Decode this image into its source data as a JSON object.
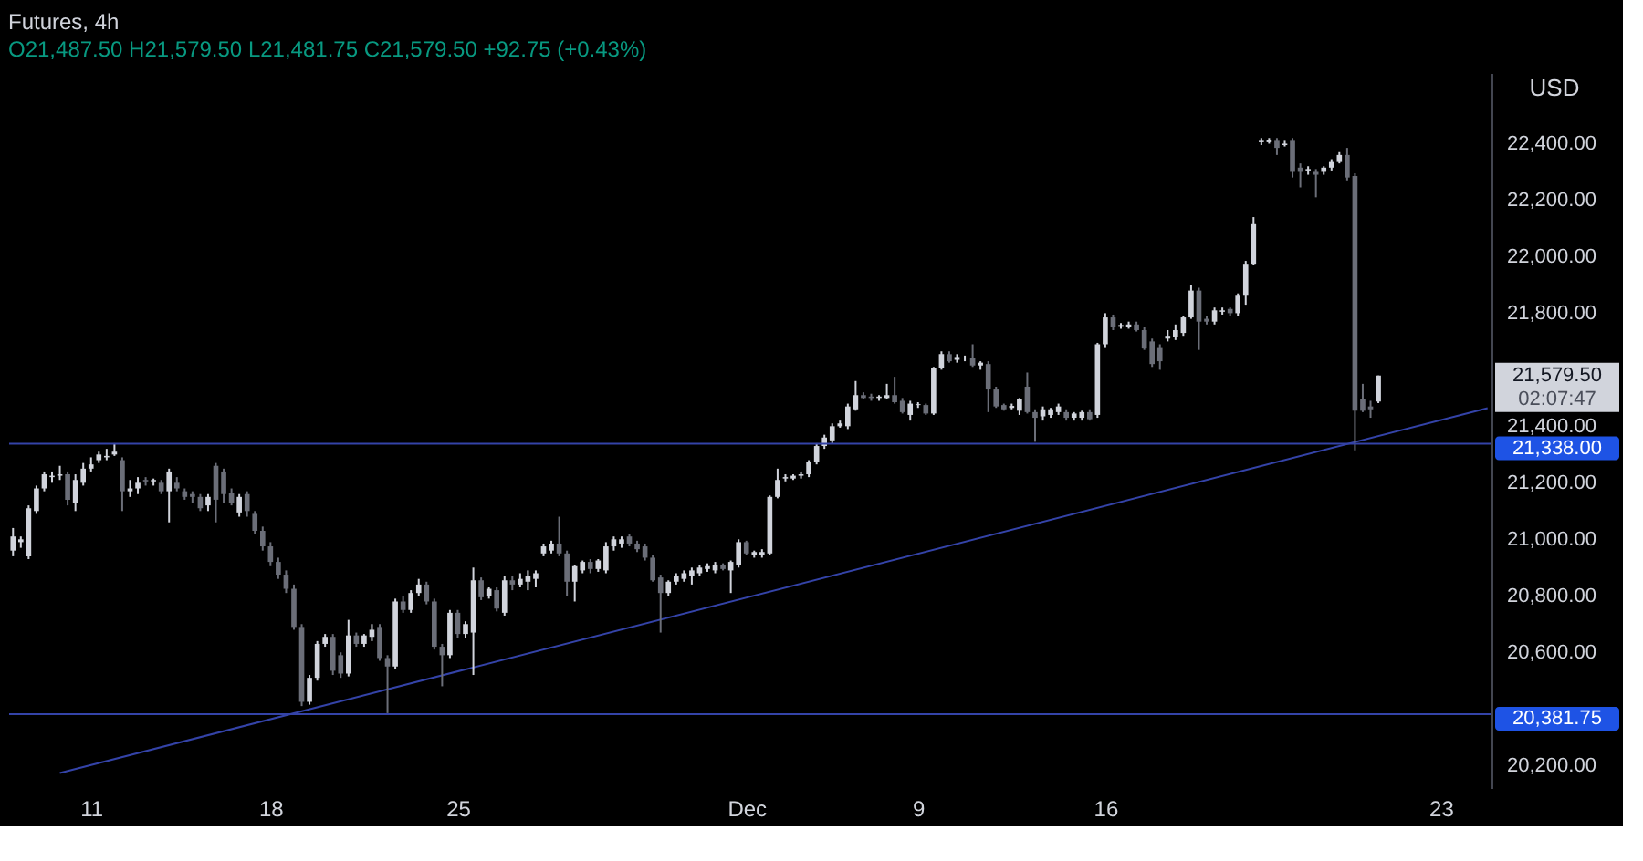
{
  "chart_data": {
    "type": "candlestick",
    "title": "Futures, 4h",
    "subtitle": "O21,487.50 H21,579.50 L21,481.75 C21,579.50 +92.75 (+0.43%)",
    "ylabel": "USD",
    "categories": [
      null,
      null,
      null,
      null,
      null,
      null,
      null,
      null,
      null,
      null,
      "11",
      null,
      null,
      null,
      null,
      null,
      null,
      null,
      null,
      null,
      null,
      null,
      null,
      null,
      null,
      null,
      null,
      null,
      null,
      null,
      null,
      null,
      null,
      "18",
      null,
      null,
      null,
      null,
      null,
      null,
      null,
      null,
      null,
      null,
      null,
      null,
      null,
      null,
      null,
      null,
      null,
      null,
      null,
      null,
      null,
      null,
      null,
      "25",
      null,
      null,
      null,
      null,
      null,
      null,
      null,
      null,
      null,
      null,
      null,
      null,
      null,
      null,
      null,
      null,
      null,
      null,
      null,
      null,
      null,
      null,
      null,
      null,
      null,
      null,
      null,
      null,
      null,
      null,
      null,
      null,
      null,
      null,
      null,
      null,
      "Dec",
      null,
      null,
      null,
      null,
      null,
      null,
      null,
      null,
      null,
      null,
      null,
      null,
      null,
      null,
      null,
      null,
      null,
      null,
      null,
      null,
      null,
      "9",
      null,
      null,
      null,
      null,
      null,
      null,
      null,
      null,
      null,
      null,
      null,
      null,
      null,
      null,
      null,
      null,
      null,
      null,
      null,
      null,
      null,
      null,
      null,
      "16",
      null,
      null,
      null,
      null,
      null,
      null,
      null,
      null,
      null,
      null,
      null,
      null,
      null,
      null,
      null,
      null,
      null,
      null,
      null,
      null,
      null,
      null,
      null,
      null,
      null,
      null,
      null,
      null,
      null,
      null,
      null,
      null,
      null,
      null,
      null,
      null,
      null,
      null,
      null,
      null,
      null,
      null,
      "23",
      null,
      null,
      null,
      null,
      null,
      null
    ],
    "ohlc": [
      [
        20960,
        21040,
        20940,
        21010
      ],
      [
        20990,
        21010,
        20970,
        21000
      ],
      [
        20940,
        21120,
        20930,
        21110
      ],
      [
        21100,
        21190,
        21090,
        21180
      ],
      [
        21180,
        21240,
        21170,
        21230
      ],
      [
        21220,
        21240,
        21200,
        21225
      ],
      [
        21225,
        21260,
        21210,
        21230
      ],
      [
        21230,
        21240,
        21120,
        21140
      ],
      [
        21130,
        21230,
        21100,
        21210
      ],
      [
        21200,
        21270,
        21190,
        21250
      ],
      [
        21250,
        21290,
        21240,
        21265
      ],
      [
        21280,
        21310,
        21270,
        21300
      ],
      [
        21290,
        21320,
        21280,
        21295
      ],
      [
        21300,
        21340,
        21295,
        21310
      ],
      [
        21280,
        21290,
        21100,
        21170
      ],
      [
        21170,
        21210,
        21150,
        21180
      ],
      [
        21180,
        21220,
        21160,
        21200
      ],
      [
        21210,
        21220,
        21190,
        21205
      ],
      [
        21205,
        21215,
        21190,
        21210
      ],
      [
        21200,
        21210,
        21160,
        21170
      ],
      [
        21170,
        21250,
        21060,
        21240
      ],
      [
        21200,
        21220,
        21170,
        21180
      ],
      [
        21170,
        21180,
        21140,
        21150
      ],
      [
        21160,
        21170,
        21130,
        21150
      ],
      [
        21150,
        21160,
        21100,
        21110
      ],
      [
        21120,
        21160,
        21100,
        21150
      ],
      [
        21260,
        21270,
        21060,
        21140
      ],
      [
        21240,
        21250,
        21130,
        21160
      ],
      [
        21165,
        21180,
        21120,
        21130
      ],
      [
        21095,
        21160,
        21080,
        21150
      ],
      [
        21160,
        21170,
        21080,
        21100
      ],
      [
        21090,
        21100,
        21020,
        21030
      ],
      [
        21030,
        21045,
        20960,
        20975
      ],
      [
        20975,
        20990,
        20905,
        20920
      ],
      [
        20920,
        20935,
        20860,
        20875
      ],
      [
        20875,
        20890,
        20810,
        20825
      ],
      [
        20825,
        20840,
        20680,
        20690
      ],
      [
        20690,
        20700,
        20410,
        20425
      ],
      [
        20425,
        20520,
        20415,
        20510
      ],
      [
        20510,
        20640,
        20500,
        20630
      ],
      [
        20630,
        20665,
        20620,
        20655
      ],
      [
        20655,
        20665,
        20520,
        20535
      ],
      [
        20590,
        20600,
        20510,
        20525
      ],
      [
        20525,
        20715,
        20515,
        20660
      ],
      [
        20660,
        20670,
        20620,
        20630
      ],
      [
        20630,
        20665,
        20620,
        20660
      ],
      [
        20655,
        20700,
        20640,
        20680
      ],
      [
        20690,
        20700,
        20570,
        20580
      ],
      [
        20580,
        20590,
        20385,
        20550
      ],
      [
        20550,
        20790,
        20540,
        20780
      ],
      [
        20780,
        20800,
        20740,
        20750
      ],
      [
        20750,
        20820,
        20740,
        20810
      ],
      [
        20810,
        20860,
        20800,
        20840
      ],
      [
        20840,
        20850,
        20770,
        20780
      ],
      [
        20780,
        20790,
        20610,
        20620
      ],
      [
        20620,
        20630,
        20480,
        20590
      ],
      [
        20590,
        20750,
        20580,
        20740
      ],
      [
        20740,
        20750,
        20650,
        20665
      ],
      [
        20665,
        20710,
        20650,
        20700
      ],
      [
        20670,
        20900,
        20520,
        20855
      ],
      [
        20855,
        20865,
        20785,
        20795
      ],
      [
        20800,
        20830,
        20790,
        20825
      ],
      [
        20820,
        20830,
        20745,
        20755
      ],
      [
        20740,
        20870,
        20730,
        20855
      ],
      [
        20855,
        20870,
        20820,
        20840
      ],
      [
        20840,
        20880,
        20830,
        20860
      ],
      [
        20850,
        20890,
        20820,
        20870
      ],
      [
        20860,
        20890,
        20830,
        20880
      ],
      [
        20950,
        20985,
        20940,
        20975
      ],
      [
        20960,
        20995,
        20950,
        20985
      ],
      [
        20985,
        21080,
        20940,
        20950
      ],
      [
        20950,
        20960,
        20800,
        20850
      ],
      [
        20850,
        20910,
        20780,
        20905
      ],
      [
        20890,
        20925,
        20880,
        20920
      ],
      [
        20920,
        20930,
        20880,
        20895
      ],
      [
        20895,
        20930,
        20885,
        20925
      ],
      [
        20890,
        20990,
        20880,
        20975
      ],
      [
        20975,
        21010,
        20960,
        21000
      ],
      [
        20985,
        21010,
        20970,
        21000
      ],
      [
        21010,
        21020,
        20975,
        20985
      ],
      [
        20985,
        20995,
        20955,
        20965
      ],
      [
        20975,
        20985,
        20925,
        20935
      ],
      [
        20935,
        20945,
        20850,
        20855
      ],
      [
        20865,
        20875,
        20670,
        20810
      ],
      [
        20810,
        20855,
        20800,
        20850
      ],
      [
        20850,
        20880,
        20840,
        20870
      ],
      [
        20860,
        20890,
        20850,
        20880
      ],
      [
        20870,
        20900,
        20840,
        20890
      ],
      [
        20880,
        20910,
        20870,
        20900
      ],
      [
        20895,
        20915,
        20885,
        20905
      ],
      [
        20890,
        20920,
        20880,
        20910
      ],
      [
        20910,
        20915,
        20890,
        20895
      ],
      [
        20890,
        20925,
        20810,
        20920
      ],
      [
        20910,
        21000,
        20900,
        20990
      ],
      [
        20990,
        20995,
        20945,
        20950
      ],
      [
        20945,
        20960,
        20935,
        20955
      ],
      [
        20945,
        20965,
        20935,
        20955
      ],
      [
        20950,
        21155,
        20945,
        21150
      ],
      [
        21150,
        21250,
        21145,
        21210
      ],
      [
        21215,
        21230,
        21205,
        21220
      ],
      [
        21215,
        21230,
        21210,
        21225
      ],
      [
        21225,
        21240,
        21215,
        21230
      ],
      [
        21230,
        21280,
        21220,
        21275
      ],
      [
        21275,
        21340,
        21265,
        21330
      ],
      [
        21330,
        21370,
        21320,
        21360
      ],
      [
        21350,
        21410,
        21340,
        21400
      ],
      [
        21400,
        21420,
        21395,
        21410
      ],
      [
        21400,
        21480,
        21390,
        21470
      ],
      [
        21460,
        21560,
        21455,
        21510
      ],
      [
        21510,
        21520,
        21495,
        21500
      ],
      [
        21505,
        21515,
        21490,
        21500
      ],
      [
        21500,
        21510,
        21490,
        21505
      ],
      [
        21500,
        21550,
        21495,
        21510
      ],
      [
        21510,
        21575,
        21480,
        21485
      ],
      [
        21490,
        21500,
        21445,
        21450
      ],
      [
        21440,
        21490,
        21420,
        21480
      ],
      [
        21475,
        21485,
        21465,
        21478
      ],
      [
        21475,
        21480,
        21440,
        21445
      ],
      [
        21445,
        21610,
        21440,
        21605
      ],
      [
        21605,
        21665,
        21600,
        21655
      ],
      [
        21655,
        21665,
        21625,
        21630
      ],
      [
        21635,
        21655,
        21625,
        21645
      ],
      [
        21640,
        21650,
        21630,
        21642
      ],
      [
        21640,
        21690,
        21610,
        21615
      ],
      [
        21615,
        21630,
        21600,
        21625
      ],
      [
        21620,
        21630,
        21450,
        21530
      ],
      [
        21530,
        21540,
        21465,
        21470
      ],
      [
        21475,
        21480,
        21455,
        21460
      ],
      [
        21465,
        21480,
        21460,
        21472
      ],
      [
        21455,
        21500,
        21440,
        21495
      ],
      [
        21540,
        21590,
        21445,
        21450
      ],
      [
        21450,
        21460,
        21345,
        21430
      ],
      [
        21435,
        21470,
        21420,
        21460
      ],
      [
        21440,
        21465,
        21430,
        21460
      ],
      [
        21450,
        21480,
        21440,
        21470
      ],
      [
        21450,
        21460,
        21420,
        21430
      ],
      [
        21430,
        21450,
        21420,
        21445
      ],
      [
        21430,
        21455,
        21420,
        21450
      ],
      [
        21450,
        21460,
        21420,
        21425
      ],
      [
        21440,
        21695,
        21430,
        21690
      ],
      [
        21690,
        21800,
        21680,
        21785
      ],
      [
        21785,
        21795,
        21740,
        21750
      ],
      [
        21755,
        21765,
        21745,
        21758
      ],
      [
        21750,
        21770,
        21745,
        21760
      ],
      [
        21760,
        21770,
        21735,
        21740
      ],
      [
        21740,
        21750,
        21670,
        21675
      ],
      [
        21700,
        21710,
        21610,
        21620
      ],
      [
        21680,
        21690,
        21600,
        21630
      ],
      [
        21710,
        21740,
        21700,
        21720
      ],
      [
        21715,
        21760,
        21705,
        21740
      ],
      [
        21730,
        21790,
        21720,
        21785
      ],
      [
        21785,
        21900,
        21780,
        21880
      ],
      [
        21880,
        21890,
        21670,
        21770
      ],
      [
        21780,
        21790,
        21760,
        21770
      ],
      [
        21770,
        21820,
        21760,
        21810
      ],
      [
        21805,
        21820,
        21795,
        21810
      ],
      [
        21815,
        21820,
        21790,
        21800
      ],
      [
        21800,
        21870,
        21790,
        21865
      ],
      [
        21865,
        21985,
        21830,
        21975
      ],
      [
        21975,
        22140,
        21970,
        22115
      ],
      [
        22405,
        22420,
        22395,
        22410
      ],
      [
        22405,
        22420,
        22400,
        22412
      ],
      [
        22410,
        22420,
        22360,
        22385
      ],
      [
        22395,
        22410,
        22390,
        22400
      ],
      [
        22410,
        22420,
        22280,
        22300
      ],
      [
        22315,
        22330,
        22245,
        22300
      ],
      [
        22305,
        22320,
        22290,
        22310
      ],
      [
        22300,
        22310,
        22210,
        22290
      ],
      [
        22300,
        22320,
        22290,
        22315
      ],
      [
        22315,
        22345,
        22305,
        22335
      ],
      [
        22335,
        22370,
        22330,
        22360
      ],
      [
        22360,
        22385,
        22270,
        22280
      ],
      [
        22285,
        22295,
        21315,
        21455
      ],
      [
        21495,
        21550,
        21450,
        21455
      ],
      [
        21470,
        21490,
        21430,
        21460
      ],
      [
        21487.5,
        21579.5,
        21481.75,
        21579.5
      ],
      null,
      null,
      null,
      null,
      null,
      null,
      null,
      null,
      null,
      null,
      null,
      null,
      null,
      null
    ],
    "colors": [
      "#d1d4dc",
      "#d1d4dc",
      "#d1d4dc",
      "#d1d4dc",
      "#d1d4dc",
      "#d1d4dc",
      "#d1d4dc",
      "#6b6e78",
      "#d1d4dc",
      "#d1d4dc",
      "#d1d4dc",
      "#d1d4dc",
      "#d1d4dc",
      "#d1d4dc",
      "#6b6e78",
      "#d1d4dc",
      "#d1d4dc",
      "#6b6e78",
      "#d1d4dc",
      "#6b6e78",
      "#d1d4dc",
      "#6b6e78",
      "#6b6e78",
      "#6b6e78",
      "#6b6e78",
      "#d1d4dc",
      "#6b6e78",
      "#6b6e78",
      "#6b6e78",
      "#d1d4dc",
      "#6b6e78",
      "#6b6e78",
      "#6b6e78",
      "#6b6e78",
      "#6b6e78",
      "#6b6e78",
      "#6b6e78",
      "#6b6e78",
      "#d1d4dc",
      "#d1d4dc",
      "#d1d4dc",
      "#6b6e78",
      "#6b6e78",
      "#d1d4dc",
      "#6b6e78",
      "#d1d4dc",
      "#d1d4dc",
      "#6b6e78",
      "#6b6e78",
      "#d1d4dc",
      "#6b6e78",
      "#d1d4dc",
      "#d1d4dc",
      "#6b6e78",
      "#6b6e78",
      "#6b6e78",
      "#d1d4dc",
      "#6b6e78",
      "#d1d4dc",
      "#d1d4dc",
      "#6b6e78",
      "#d1d4dc",
      "#6b6e78",
      "#d1d4dc",
      "#6b6e78",
      "#d1d4dc",
      "#d1d4dc",
      "#d1d4dc",
      "#d1d4dc",
      "#d1d4dc",
      "#6b6e78",
      "#6b6e78",
      "#d1d4dc",
      "#d1d4dc",
      "#6b6e78",
      "#d1d4dc",
      "#d1d4dc",
      "#d1d4dc",
      "#d1d4dc",
      "#6b6e78",
      "#6b6e78",
      "#6b6e78",
      "#6b6e78",
      "#6b6e78",
      "#d1d4dc",
      "#d1d4dc",
      "#d1d4dc",
      "#d1d4dc",
      "#d1d4dc",
      "#d1d4dc",
      "#d1d4dc",
      "#6b6e78",
      "#d1d4dc",
      "#d1d4dc",
      "#6b6e78",
      "#d1d4dc",
      "#d1d4dc",
      "#d1d4dc",
      "#d1d4dc",
      "#d1d4dc",
      "#d1d4dc",
      "#d1d4dc",
      "#d1d4dc",
      "#d1d4dc",
      "#d1d4dc",
      "#d1d4dc",
      "#d1d4dc",
      "#d1d4dc",
      "#d1d4dc",
      "#6b6e78",
      "#6b6e78",
      "#d1d4dc",
      "#d1d4dc",
      "#6b6e78",
      "#6b6e78",
      "#d1d4dc",
      "#d1d4dc",
      "#6b6e78",
      "#d1d4dc",
      "#d1d4dc",
      "#6b6e78",
      "#d1d4dc",
      "#d1d4dc",
      "#6b6e78",
      "#d1d4dc",
      "#6b6e78",
      "#6b6e78",
      "#6b6e78",
      "#d1d4dc",
      "#d1d4dc",
      "#6b6e78",
      "#6b6e78",
      "#d1d4dc",
      "#d1d4dc",
      "#d1d4dc",
      "#6b6e78",
      "#d1d4dc",
      "#d1d4dc",
      "#6b6e78",
      "#d1d4dc",
      "#d1d4dc",
      "#6b6e78",
      "#d1d4dc",
      "#d1d4dc",
      "#6b6e78",
      "#6b6e78",
      "#6b6e78",
      "#6b6e78",
      "#d1d4dc",
      "#d1d4dc",
      "#d1d4dc",
      "#d1d4dc",
      "#6b6e78",
      "#6b6e78",
      "#d1d4dc",
      "#d1d4dc",
      "#6b6e78",
      "#d1d4dc",
      "#d1d4dc",
      "#d1d4dc",
      "#d1d4dc",
      "#d1d4dc",
      "#6b6e78",
      "#d1d4dc",
      "#6b6e78",
      "#6b6e78",
      "#d1d4dc",
      "#6b6e78",
      "#d1d4dc",
      "#d1d4dc",
      "#d1d4dc",
      "#6b6e78",
      "#6b6e78",
      "#6b6e78",
      "#6b6e78",
      "#d1d4dc",
      null,
      null,
      null,
      null,
      null,
      null,
      null,
      null,
      null,
      null,
      null,
      null,
      null,
      null
    ],
    "series": [
      {
        "type": "line",
        "color": "#3443a8",
        "values": [
          null,
          null,
          null,
          null,
          null,
          null,
          20173,
          null,
          null,
          null,
          null,
          null,
          null,
          null,
          null,
          null,
          null,
          null,
          null,
          null,
          null,
          null,
          null,
          null,
          null,
          null,
          null,
          null,
          null,
          null,
          null,
          null,
          null,
          null,
          null,
          null,
          null,
          null,
          null,
          null,
          null,
          null,
          null,
          null,
          null,
          null,
          null,
          null,
          null,
          null,
          null,
          null,
          null,
          null,
          null,
          null,
          null,
          null,
          null,
          null,
          null,
          null,
          null,
          null,
          null,
          null,
          null,
          null,
          null,
          null,
          null,
          null,
          null,
          null,
          null,
          null,
          null,
          null,
          null,
          null,
          null,
          null,
          null,
          null,
          null,
          null,
          null,
          null,
          null,
          null,
          null,
          null,
          null,
          null,
          null,
          null,
          null,
          null,
          null,
          null,
          null,
          null,
          null,
          null,
          null,
          null,
          null,
          null,
          null,
          null,
          null,
          null,
          null,
          null,
          null,
          null,
          null,
          null,
          null,
          null,
          null,
          null,
          null,
          null,
          null,
          null,
          null,
          null,
          null,
          null,
          null,
          null,
          null,
          null,
          null,
          null,
          null,
          null,
          null,
          null,
          null,
          null,
          null,
          null,
          null,
          null,
          null,
          null,
          null,
          null,
          null,
          null,
          null,
          null,
          null,
          null,
          null,
          null,
          null,
          null,
          null,
          null,
          null,
          null,
          null,
          null,
          null,
          null,
          null,
          null,
          null,
          null,
          null,
          null,
          null,
          null,
          null,
          null,
          null,
          null,
          null,
          null,
          null,
          null,
          null,
          null,
          null,
          null,
          null,
          21464
        ]
      }
    ],
    "ylim": [
      20120,
      22650
    ],
    "yticks": [
      {
        "value": 20200,
        "label": "20,200.00"
      },
      {
        "value": 20600,
        "label": "20,600.00"
      },
      {
        "value": 20800,
        "label": "20,800.00"
      },
      {
        "value": 21000,
        "label": "21,000.00"
      },
      {
        "value": 21200,
        "label": "21,200.00"
      },
      {
        "value": 21400,
        "label": "21,400.00"
      },
      {
        "value": 21800,
        "label": "21,800.00"
      },
      {
        "value": 22000,
        "label": "22,000.00"
      },
      {
        "value": 22200,
        "label": "22,200.00"
      },
      {
        "value": 22400,
        "label": "22,400.00"
      }
    ],
    "ref_lines": [
      {
        "axis": "y",
        "value": 21338,
        "label": "21,338.00",
        "color": "#3443a8"
      },
      {
        "axis": "y",
        "value": 20381.75,
        "label": "20,381.75",
        "color": "#3443a8"
      }
    ],
    "annotations": [
      "21,579.50",
      "02:07:47"
    ],
    "grid": false
  }
}
